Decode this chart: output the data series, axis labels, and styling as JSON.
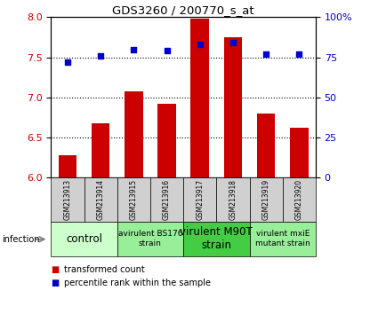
{
  "title": "GDS3260 / 200770_s_at",
  "samples": [
    "GSM213913",
    "GSM213914",
    "GSM213915",
    "GSM213916",
    "GSM213917",
    "GSM213918",
    "GSM213919",
    "GSM213920"
  ],
  "bar_values": [
    6.28,
    6.68,
    7.08,
    6.92,
    7.98,
    7.75,
    6.8,
    6.62
  ],
  "dot_values": [
    72,
    76,
    80,
    79,
    83,
    84,
    77,
    77
  ],
  "ylim_left": [
    6.0,
    8.0
  ],
  "ylim_right": [
    0,
    100
  ],
  "yticks_left": [
    6.0,
    6.5,
    7.0,
    7.5,
    8.0
  ],
  "yticks_right": [
    0,
    25,
    50,
    75,
    100
  ],
  "bar_color": "#cc0000",
  "dot_color": "#0000cc",
  "groups": [
    {
      "label": "control",
      "start": 0,
      "end": 2,
      "color": "#ccffcc",
      "fontsize": 8.5,
      "small": false
    },
    {
      "label": "avirulent BS176\nstrain",
      "start": 2,
      "end": 4,
      "color": "#99ee99",
      "fontsize": 6.5,
      "small": true
    },
    {
      "label": "virulent M90T\nstrain",
      "start": 4,
      "end": 6,
      "color": "#44cc44",
      "fontsize": 8.5,
      "small": false
    },
    {
      "label": "virulent mxiE\nmutant strain",
      "start": 6,
      "end": 8,
      "color": "#99ee99",
      "fontsize": 6.5,
      "small": true
    }
  ],
  "sample_row_bg": "#d0d0d0",
  "infection_label": "infection",
  "legend_bar_label": "transformed count",
  "legend_dot_label": "percentile rank within the sample"
}
